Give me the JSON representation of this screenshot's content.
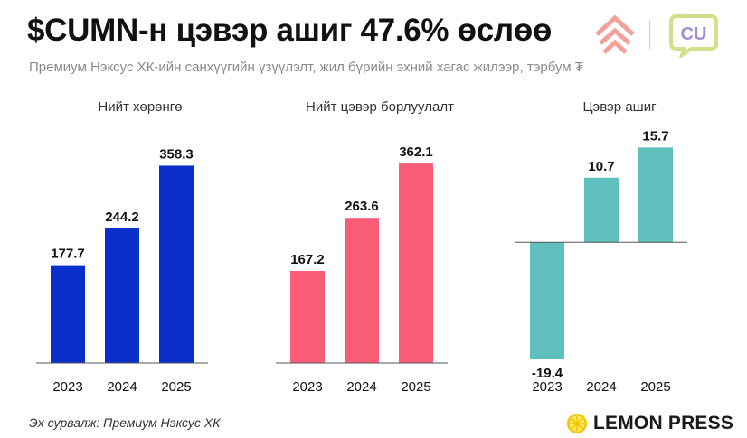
{
  "header": {
    "title": "$CUMN-н цэвэр ашиг 47.6% өслөө",
    "subtitle": "Премиум Нэксус ХК-ийн санхүүгийн үзүүлэлт, жил бүрийн эхний хагас жилээр, тэрбум ₮"
  },
  "logos": {
    "left_icon": "chevron-stack-logo-icon",
    "right_text": "CU",
    "left_color": "#f4a09a",
    "right_color": "#cfe28a"
  },
  "chart_data": [
    {
      "type": "bar",
      "title": "Нийт хөрөнгө",
      "categories": [
        "2023",
        "2024",
        "2025"
      ],
      "values": [
        177.7,
        244.2,
        358.3
      ],
      "value_labels": [
        "177.7",
        "244.2",
        "358.3"
      ],
      "color": "#0a2ecb",
      "ylim": [
        0,
        400
      ]
    },
    {
      "type": "bar",
      "title": "Нийт цэвэр борлуулалт",
      "categories": [
        "2023",
        "2024",
        "2025"
      ],
      "values": [
        167.2,
        263.6,
        362.1
      ],
      "value_labels": [
        "167.2",
        "263.6",
        "362.1"
      ],
      "color": "#fb5c78",
      "ylim": [
        0,
        400
      ]
    },
    {
      "type": "bar",
      "title": "Цэвэр ашиг",
      "categories": [
        "2023",
        "2024",
        "2025"
      ],
      "values": [
        -19.4,
        10.7,
        15.7
      ],
      "value_labels": [
        "-19.4",
        "10.7",
        "15.7"
      ],
      "color": "#5fbfbd",
      "ylim": [
        -20,
        16.5
      ]
    }
  ],
  "footer": {
    "source": "Эх сурвалж: Премиум Нэксус ХК",
    "brand": "LEMON PRESS",
    "brand_icon": "lemon-slice-icon"
  }
}
